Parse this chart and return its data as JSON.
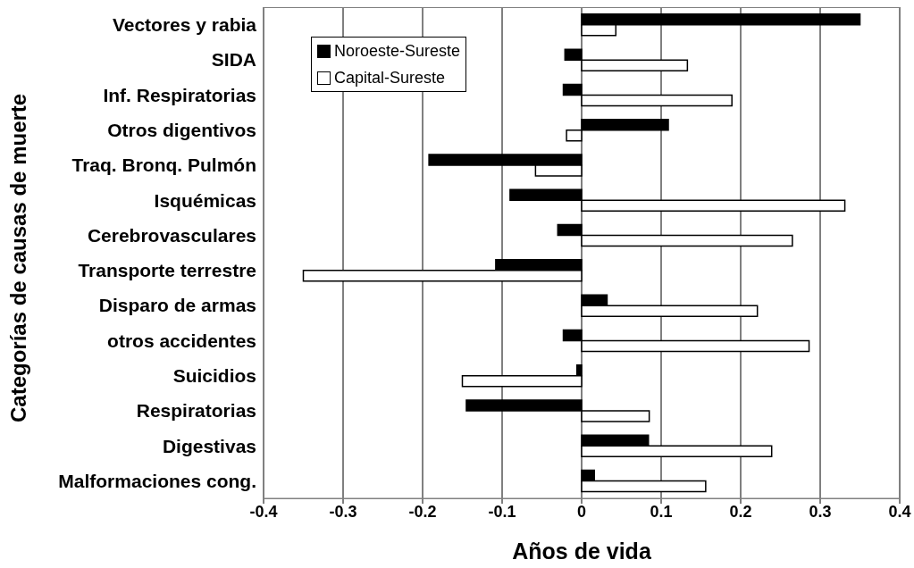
{
  "chart_data": {
    "type": "bar",
    "orientation": "horizontal",
    "xlabel": "Años de vida",
    "ylabel": "Categorías de causas de muerte",
    "categories": [
      "Vectores y rabia",
      "SIDA",
      "Inf. Respiratorias",
      "Otros digentivos",
      "Traq. Bronq. Pulmón",
      "Isquémicas",
      "Cerebrovasculares",
      "Transporte terrestre",
      "Disparo de armas",
      "otros accidentes",
      "Suicidios",
      "Respiratorias",
      "Digestivas",
      "Malformaciones cong."
    ],
    "series": [
      {
        "name": "Noroeste-Sureste",
        "color": "#000000",
        "values": [
          0.35,
          -0.021,
          -0.023,
          0.109,
          -0.192,
          -0.09,
          -0.03,
          -0.108,
          0.032,
          -0.023,
          -0.006,
          -0.145,
          0.084,
          0.016
        ]
      },
      {
        "name": "Capital-Sureste",
        "color": "#ffffff",
        "values": [
          0.043,
          0.133,
          0.189,
          -0.019,
          -0.058,
          0.331,
          0.265,
          -0.35,
          0.221,
          0.286,
          -0.15,
          0.085,
          0.239,
          0.156
        ]
      }
    ],
    "xlim": [
      -0.4,
      0.4
    ],
    "xticks": [
      -0.4,
      -0.3,
      -0.2,
      -0.1,
      0,
      0.1,
      0.2,
      0.3,
      0.4
    ],
    "grid": "x",
    "legend": "top left"
  }
}
